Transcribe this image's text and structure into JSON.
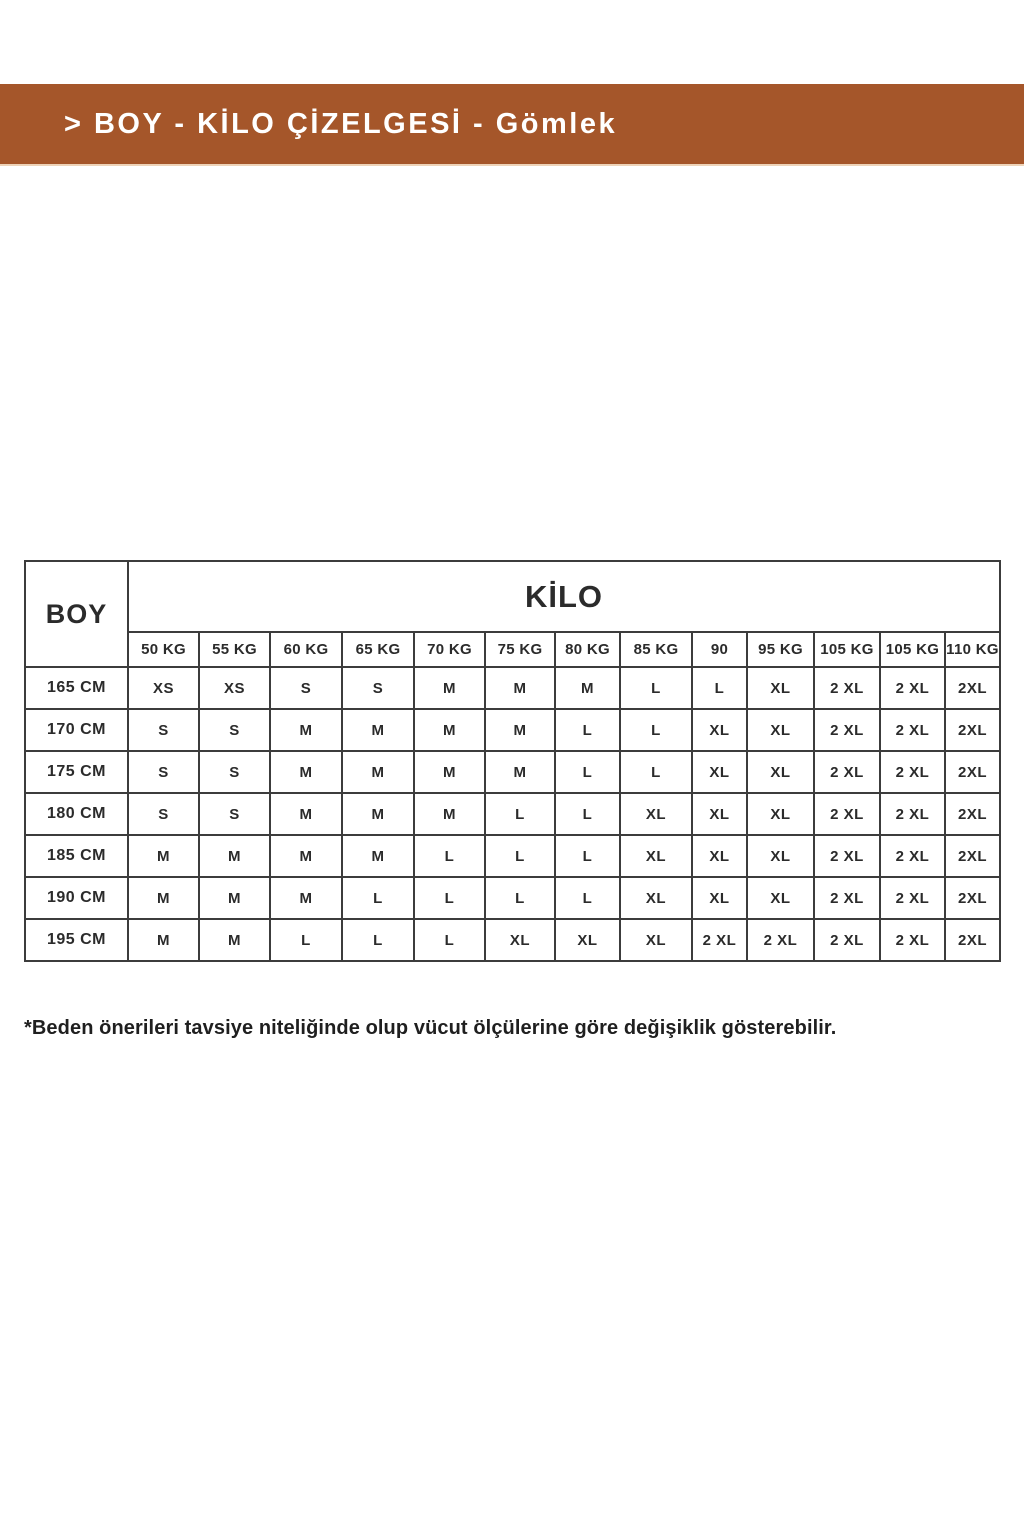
{
  "header": {
    "title": "> BOY - KİLO ÇİZELGESİ - Gömlek",
    "background_color": "#a5562a",
    "text_color": "#ffffff"
  },
  "table": {
    "corner_label": "BOY",
    "group_label": "KİLO",
    "columns": [
      "50 KG",
      "55 KG",
      "60 KG",
      "65 KG",
      "70 KG",
      "75 KG",
      "80 KG",
      "85 KG",
      "90",
      "95 KG",
      "105 KG",
      "105 KG",
      "110 KG"
    ],
    "rows": [
      {
        "height": "165 CM",
        "sizes": [
          "XS",
          "XS",
          "S",
          "S",
          "M",
          "M",
          "M",
          "L",
          "L",
          "XL",
          "2 XL",
          "2 XL",
          "2XL"
        ]
      },
      {
        "height": "170 CM",
        "sizes": [
          "S",
          "S",
          "M",
          "M",
          "M",
          "M",
          "L",
          "L",
          "XL",
          "XL",
          "2 XL",
          "2 XL",
          "2XL"
        ]
      },
      {
        "height": "175 CM",
        "sizes": [
          "S",
          "S",
          "M",
          "M",
          "M",
          "M",
          "L",
          "L",
          "XL",
          "XL",
          "2 XL",
          "2 XL",
          "2XL"
        ]
      },
      {
        "height": "180 CM",
        "sizes": [
          "S",
          "S",
          "M",
          "M",
          "M",
          "L",
          "L",
          "XL",
          "XL",
          "XL",
          "2 XL",
          "2 XL",
          "2XL"
        ]
      },
      {
        "height": "185 CM",
        "sizes": [
          "M",
          "M",
          "M",
          "M",
          "L",
          "L",
          "L",
          "XL",
          "XL",
          "XL",
          "2 XL",
          "2 XL",
          "2XL"
        ]
      },
      {
        "height": "190 CM",
        "sizes": [
          "M",
          "M",
          "M",
          "L",
          "L",
          "L",
          "L",
          "XL",
          "XL",
          "XL",
          "2 XL",
          "2 XL",
          "2XL"
        ]
      },
      {
        "height": "195 CM",
        "sizes": [
          "M",
          "M",
          "L",
          "L",
          "L",
          "XL",
          "XL",
          "XL",
          "2 XL",
          "2 XL",
          "2 XL",
          "2 XL",
          "2XL"
        ]
      }
    ],
    "border_color": "#3c3c3c"
  },
  "footnote": "*Beden önerileri tavsiye niteliğinde olup vücut ölçülerine göre değişiklik gösterebilir."
}
